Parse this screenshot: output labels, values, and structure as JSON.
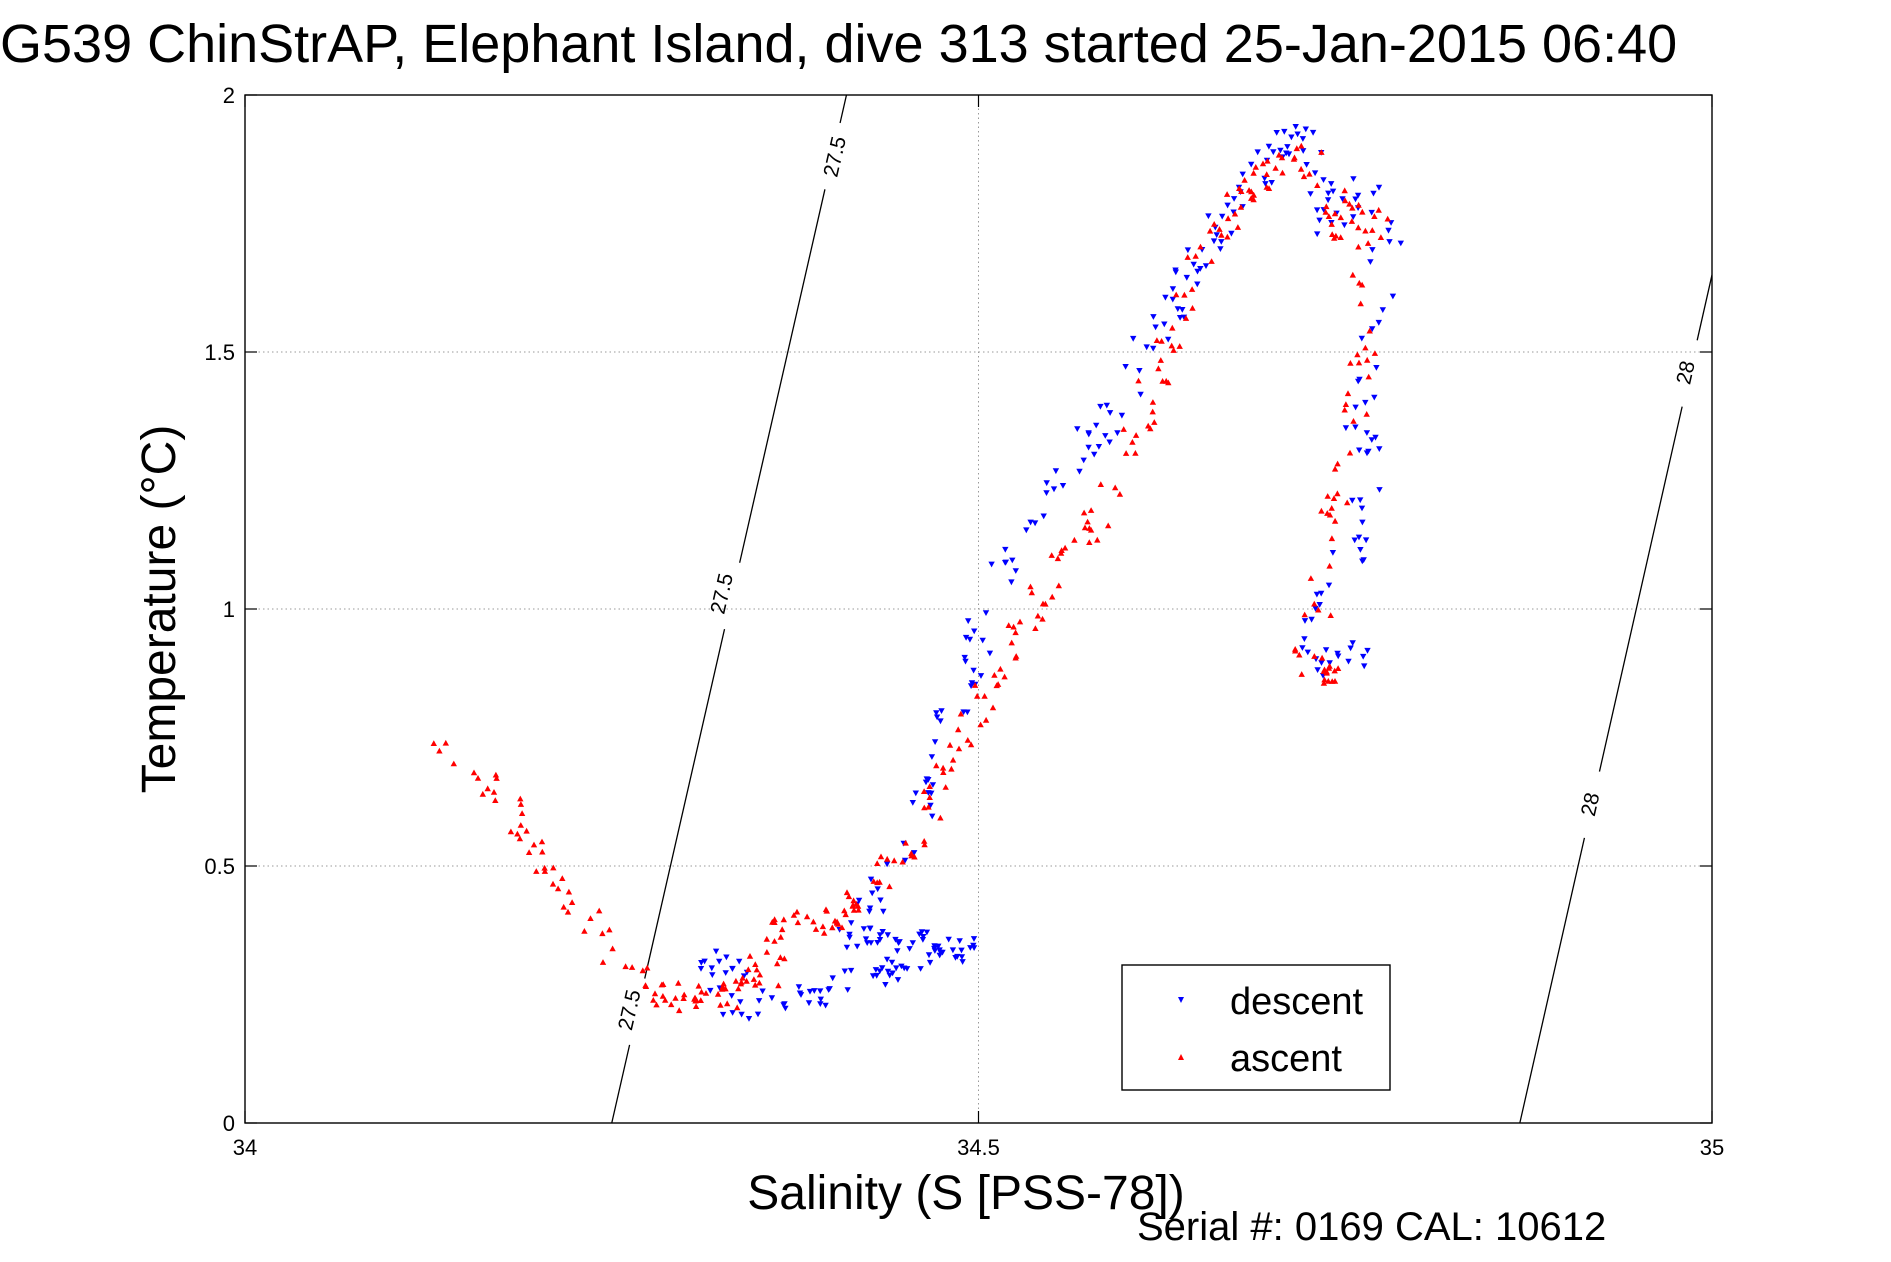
{
  "chart_data": {
    "type": "scatter",
    "title": "G539 ChinStrAP, Elephant Island, dive 313 started 25-Jan-2015 06:40",
    "xlabel": "Salinity (S [PSS-78])",
    "ylabel": "Temperature (°C)",
    "footer": "Serial #: 0169 CAL: 10612",
    "xlim": [
      34,
      35
    ],
    "ylim": [
      0,
      2
    ],
    "xticks": [
      34,
      34.5,
      35
    ],
    "xtick_labels": [
      "34",
      "34.5",
      "35"
    ],
    "yticks": [
      0,
      0.5,
      1,
      1.5,
      2
    ],
    "ytick_labels": [
      "0",
      "0.5",
      "1",
      "1.5",
      "2"
    ],
    "grid": true,
    "legend": {
      "placement": "bottom-right",
      "entries": [
        "descent",
        "ascent"
      ]
    },
    "colors": {
      "descent": "#0000ff",
      "ascent": "#ff0000",
      "contour": "#000000",
      "grid": "#999999"
    },
    "contours": [
      {
        "label": "27.5",
        "points": [
          [
            34.25,
            0
          ],
          [
            34.41,
            2
          ]
        ],
        "label_positions": [
          [
            34.262,
            0.22
          ],
          [
            34.325,
            1.03
          ],
          [
            34.402,
            1.88
          ]
        ]
      },
      {
        "label": "28",
        "points": [
          [
            34.869,
            0
          ],
          [
            35.0,
            1.65
          ]
        ],
        "label_positions": [
          [
            34.917,
            0.62
          ],
          [
            34.982,
            1.46
          ]
        ]
      }
    ],
    "series": [
      {
        "name": "descent",
        "marker": "triangle-down",
        "path": [
          [
            34.34,
            0.31
          ],
          [
            34.32,
            0.31
          ],
          [
            34.31,
            0.28
          ],
          [
            34.32,
            0.24
          ],
          [
            34.34,
            0.22
          ],
          [
            34.36,
            0.24
          ],
          [
            34.39,
            0.25
          ],
          [
            34.42,
            0.28
          ],
          [
            34.45,
            0.3
          ],
          [
            34.47,
            0.32
          ],
          [
            34.5,
            0.34
          ],
          [
            34.41,
            0.36
          ],
          [
            34.42,
            0.4
          ],
          [
            34.44,
            0.48
          ],
          [
            34.46,
            0.58
          ],
          [
            34.47,
            0.66
          ],
          [
            34.47,
            0.72
          ],
          [
            34.48,
            0.78
          ],
          [
            34.49,
            0.86
          ],
          [
            34.5,
            0.94
          ],
          [
            34.51,
            1.05
          ],
          [
            34.53,
            1.15
          ],
          [
            34.56,
            1.25
          ],
          [
            34.59,
            1.38
          ],
          [
            34.61,
            1.5
          ],
          [
            34.63,
            1.58
          ],
          [
            34.64,
            1.65
          ],
          [
            34.66,
            1.72
          ],
          [
            34.68,
            1.8
          ],
          [
            34.7,
            1.88
          ],
          [
            34.715,
            1.93
          ],
          [
            34.725,
            1.9
          ],
          [
            34.73,
            1.82
          ],
          [
            34.735,
            1.75
          ],
          [
            34.745,
            1.77
          ],
          [
            34.755,
            1.81
          ],
          [
            34.765,
            1.83
          ],
          [
            34.77,
            1.76
          ],
          [
            34.78,
            1.7
          ],
          [
            34.775,
            1.62
          ],
          [
            34.77,
            1.55
          ],
          [
            34.765,
            1.45
          ],
          [
            34.76,
            1.35
          ],
          [
            34.77,
            1.28
          ],
          [
            34.765,
            1.2
          ],
          [
            34.755,
            1.12
          ],
          [
            34.74,
            1.05
          ],
          [
            34.73,
            0.98
          ],
          [
            34.725,
            0.92
          ],
          [
            34.735,
            0.89
          ],
          [
            34.75,
            0.9
          ],
          [
            34.77,
            0.92
          ]
        ],
        "count": 340
      },
      {
        "name": "ascent",
        "marker": "triangle-up",
        "path": [
          [
            34.13,
            0.73
          ],
          [
            34.15,
            0.7
          ],
          [
            34.17,
            0.64
          ],
          [
            34.19,
            0.57
          ],
          [
            34.21,
            0.49
          ],
          [
            34.23,
            0.43
          ],
          [
            34.24,
            0.36
          ],
          [
            34.26,
            0.3
          ],
          [
            34.28,
            0.26
          ],
          [
            34.3,
            0.24
          ],
          [
            34.33,
            0.25
          ],
          [
            34.36,
            0.3
          ],
          [
            34.35,
            0.35
          ],
          [
            34.37,
            0.38
          ],
          [
            34.4,
            0.4
          ],
          [
            34.42,
            0.42
          ],
          [
            34.43,
            0.46
          ],
          [
            34.45,
            0.52
          ],
          [
            34.47,
            0.62
          ],
          [
            34.48,
            0.72
          ],
          [
            34.5,
            0.8
          ],
          [
            34.52,
            0.9
          ],
          [
            34.54,
            1.02
          ],
          [
            34.56,
            1.12
          ],
          [
            34.58,
            1.18
          ],
          [
            34.6,
            1.3
          ],
          [
            34.62,
            1.45
          ],
          [
            34.64,
            1.6
          ],
          [
            34.66,
            1.72
          ],
          [
            34.68,
            1.8
          ],
          [
            34.7,
            1.86
          ],
          [
            34.72,
            1.9
          ],
          [
            34.73,
            1.85
          ],
          [
            34.74,
            1.75
          ],
          [
            34.75,
            1.74
          ],
          [
            34.76,
            1.8
          ],
          [
            34.77,
            1.73
          ],
          [
            34.765,
            1.65
          ],
          [
            34.76,
            1.55
          ],
          [
            34.76,
            1.45
          ],
          [
            34.75,
            1.35
          ],
          [
            34.745,
            1.25
          ],
          [
            34.74,
            1.15
          ],
          [
            34.735,
            1.05
          ],
          [
            34.73,
            0.97
          ],
          [
            34.725,
            0.9
          ],
          [
            34.735,
            0.88
          ],
          [
            34.75,
            0.87
          ]
        ],
        "count": 360
      }
    ]
  }
}
